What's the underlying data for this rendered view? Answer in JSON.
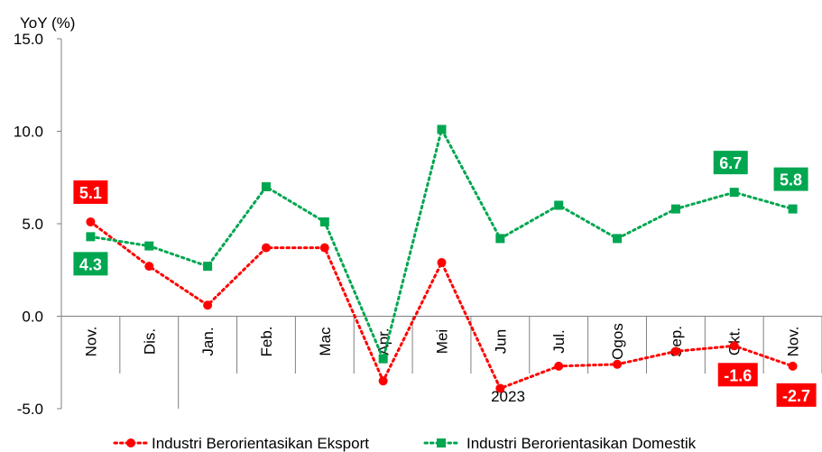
{
  "chart_data": {
    "type": "line",
    "ylabel": "YoY (%)",
    "ylim": [
      -5,
      15
    ],
    "yticks": [
      "-5.0",
      "0.0",
      "5.0",
      "10.0",
      "15.0"
    ],
    "categories": [
      "Nov.",
      "Dis.",
      "Jan.",
      "Feb.",
      "Mac",
      "Apr.",
      "Mei",
      "Jun",
      "Jul.",
      "Ogos",
      "Sep.",
      "Okt.",
      "Nov."
    ],
    "year_label": "2023",
    "grid": false,
    "legend_position": "bottom",
    "series": [
      {
        "name": "Industri Berorientasikan Eksport",
        "color": "#FF0000",
        "marker": "circle",
        "values": [
          5.1,
          2.7,
          0.6,
          3.7,
          3.7,
          -3.5,
          2.9,
          -3.9,
          -2.7,
          -2.6,
          -1.9,
          -1.6,
          -2.7
        ]
      },
      {
        "name": "Industri Berorientasikan Domestik",
        "color": "#00A650",
        "marker": "square",
        "values": [
          4.3,
          3.8,
          2.7,
          7.0,
          5.1,
          -2.3,
          10.1,
          4.2,
          6.0,
          4.2,
          5.8,
          6.7,
          5.8
        ]
      }
    ],
    "annotations": [
      {
        "series": 0,
        "index": 0,
        "text": "5.1",
        "color": "#FF0000"
      },
      {
        "series": 1,
        "index": 0,
        "text": "4.3",
        "color": "#00A650"
      },
      {
        "series": 1,
        "index": 11,
        "text": "6.7",
        "color": "#00A650"
      },
      {
        "series": 1,
        "index": 12,
        "text": "5.8",
        "color": "#00A650"
      },
      {
        "series": 0,
        "index": 11,
        "text": "-1.6",
        "color": "#FF0000"
      },
      {
        "series": 0,
        "index": 12,
        "text": "-2.7",
        "color": "#FF0000"
      }
    ]
  }
}
